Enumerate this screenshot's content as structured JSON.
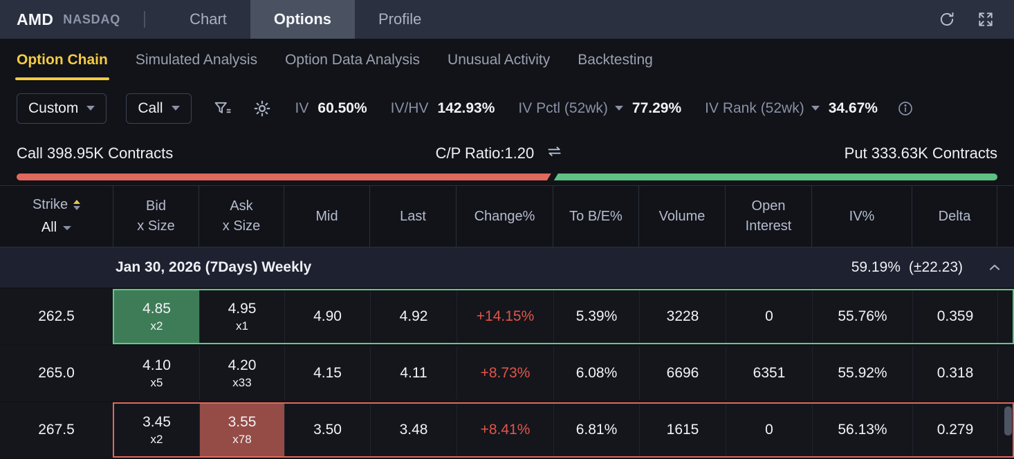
{
  "colors": {
    "accent_yellow": "#f6cb43",
    "call_red": "#e0695e",
    "put_green": "#5fc084",
    "change_red": "#e25549",
    "bid_highlight_bg": "#3e7c57",
    "ask_highlight_bg": "#954b46"
  },
  "topbar": {
    "symbol": "AMD",
    "exchange": "NASDAQ",
    "tabs": [
      {
        "label": "Chart",
        "active": false
      },
      {
        "label": "Options",
        "active": true
      },
      {
        "label": "Profile",
        "active": false
      }
    ]
  },
  "subtabs": [
    {
      "label": "Option Chain",
      "active": true
    },
    {
      "label": "Simulated Analysis",
      "active": false
    },
    {
      "label": "Option Data Analysis",
      "active": false
    },
    {
      "label": "Unusual Activity",
      "active": false
    },
    {
      "label": "Backtesting",
      "active": false
    }
  ],
  "filters": {
    "strategy_dropdown": "Custom",
    "type_dropdown": "Call",
    "stats": [
      {
        "label": "IV",
        "value": "60.50%",
        "dropdown": false
      },
      {
        "label": "IV/HV",
        "value": "142.93%",
        "dropdown": false
      },
      {
        "label": "IV Pctl (52wk)",
        "value": "77.29%",
        "dropdown": true
      },
      {
        "label": "IV Rank (52wk)",
        "value": "34.67%",
        "dropdown": true
      }
    ]
  },
  "ratio_bar": {
    "call_label": "Call 398.95K Contracts",
    "ratio_label": "C/P Ratio:1.20",
    "put_label": "Put 333.63K Contracts",
    "call_pct": 54.5
  },
  "table": {
    "header": {
      "strike_title": "Strike",
      "strike_filter": "All",
      "cols": [
        {
          "l1": "Bid",
          "l2": "x Size"
        },
        {
          "l1": "Ask",
          "l2": "x Size"
        },
        {
          "l1": "Mid",
          "l2": ""
        },
        {
          "l1": "Last",
          "l2": ""
        },
        {
          "l1": "Change%",
          "l2": ""
        },
        {
          "l1": "To B/E%",
          "l2": ""
        },
        {
          "l1": "Volume",
          "l2": ""
        },
        {
          "l1": "Open",
          "l2": "Interest"
        },
        {
          "l1": "IV%",
          "l2": ""
        },
        {
          "l1": "Delta",
          "l2": ""
        }
      ]
    },
    "expiry": {
      "label": "Jan 30, 2026 (7Days) Weekly",
      "iv": "59.19%",
      "expected_move": "(±22.23)"
    },
    "rows": [
      {
        "strike": "262.5",
        "bid": "4.85",
        "bid_size": "x2",
        "ask": "4.95",
        "ask_size": "x1",
        "mid": "4.90",
        "last": "4.92",
        "change": "+14.15%",
        "to_be": "5.39%",
        "volume": "3228",
        "open_interest": "0",
        "iv": "55.76%",
        "delta": "0.359",
        "highlight": "green"
      },
      {
        "strike": "265.0",
        "bid": "4.10",
        "bid_size": "x5",
        "ask": "4.20",
        "ask_size": "x33",
        "mid": "4.15",
        "last": "4.11",
        "change": "+8.73%",
        "to_be": "6.08%",
        "volume": "6696",
        "open_interest": "6351",
        "iv": "55.92%",
        "delta": "0.318",
        "highlight": "none"
      },
      {
        "strike": "267.5",
        "bid": "3.45",
        "bid_size": "x2",
        "ask": "3.55",
        "ask_size": "x78",
        "mid": "3.50",
        "last": "3.48",
        "change": "+8.41%",
        "to_be": "6.81%",
        "volume": "1615",
        "open_interest": "0",
        "iv": "56.13%",
        "delta": "0.279",
        "highlight": "red"
      }
    ]
  }
}
